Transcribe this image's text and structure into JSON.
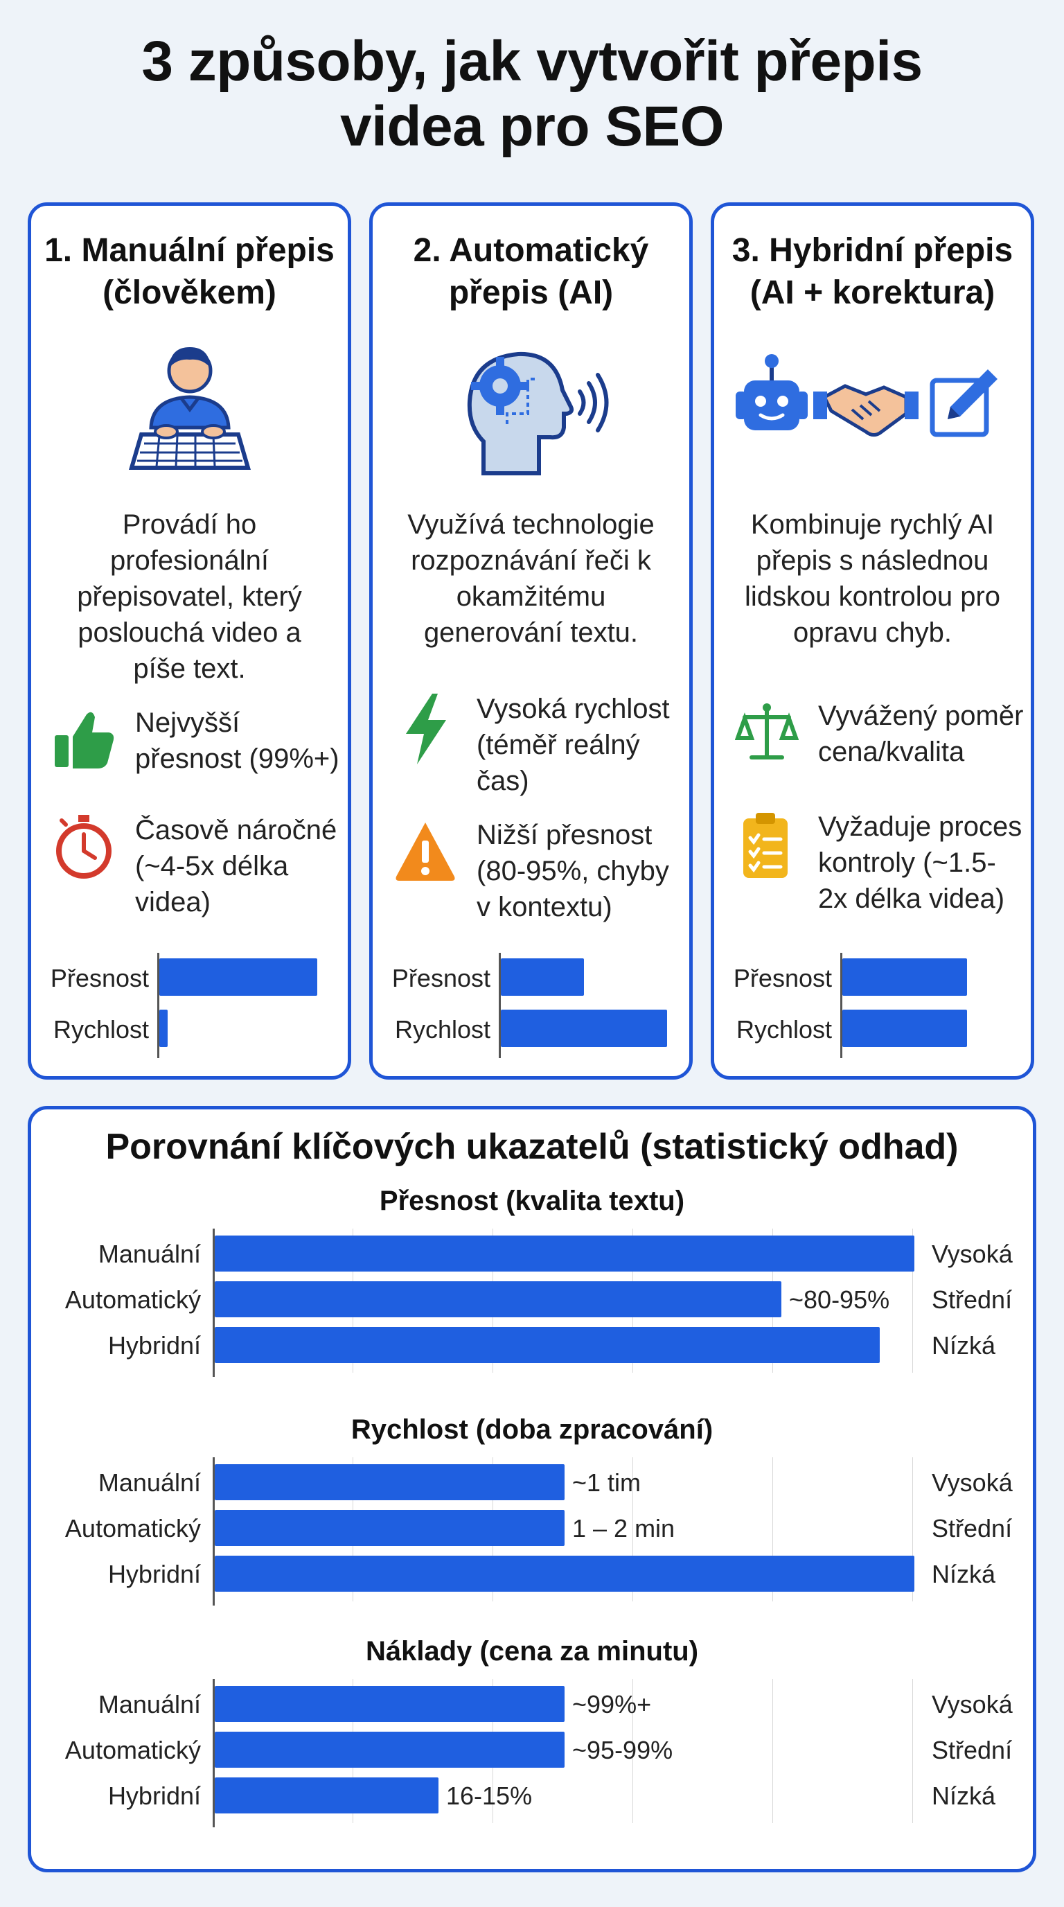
{
  "title": {
    "line1": "3 způsoby, jak vytvořit přepis",
    "line2": "videa pro SEO"
  },
  "cards": [
    {
      "title_line1": "1. Manuální přepis",
      "title_line2": "(člověkem)",
      "icon": "person-typing-icon",
      "description": [
        "Provádí ho profesionální",
        "přepisovatel, který",
        "poslouchá video a",
        "píše text."
      ],
      "features": [
        {
          "icon": "thumbs-up-icon",
          "color": "#2e9d48",
          "lines": [
            "Nejvyšší",
            "přesnost (99%+)"
          ]
        },
        {
          "icon": "stopwatch-icon",
          "color": "#d33a2c",
          "lines": [
            "Časově náročné",
            "(~4-5x délka",
            "videa)"
          ]
        }
      ],
      "chart_data": {
        "type": "bar",
        "categories": [
          "Přesnost",
          "Rychlost"
        ],
        "values": [
          0.95,
          0.05
        ]
      }
    },
    {
      "title_line1": "2. Automatický",
      "title_line2": "přepis (AI)",
      "icon": "ai-head-icon",
      "description": [
        "Využívá technologie",
        "rozpoznávání řeči k",
        "okamžitému",
        "generování textu."
      ],
      "features": [
        {
          "icon": "lightning-icon",
          "color": "#2e9d48",
          "lines": [
            "Vysoká rychlost",
            "(téměř reálný",
            "čas)"
          ]
        },
        {
          "icon": "warning-icon",
          "color": "#f28a1c",
          "lines": [
            "Nižší přesnost",
            "(80-95%, chyby",
            "v kontextu)"
          ]
        }
      ],
      "chart_data": {
        "type": "bar",
        "categories": [
          "Přesnost",
          "Rychlost"
        ],
        "values": [
          0.5,
          1.0
        ]
      }
    },
    {
      "title_line1": "3. Hybridní přepis",
      "title_line2": "(AI + korektura)",
      "icon": "robot-handshake-edit-icon",
      "description": [
        "Kombinuje rychlý AI",
        "přepis s následnou",
        "lidskou kontrolou pro",
        "opravu chyb."
      ],
      "features": [
        {
          "icon": "scales-icon",
          "color": "#2e9d48",
          "lines": [
            "Vyvážený poměr",
            "cena/kvalita"
          ]
        },
        {
          "icon": "clipboard-icon",
          "color": "#f2b51c",
          "lines": [
            "Vyžaduje proces",
            "kontroly (~1.5-",
            "2x délka videa)"
          ]
        }
      ],
      "chart_data": {
        "type": "bar",
        "categories": [
          "Přesnost",
          "Rychlost"
        ],
        "values": [
          0.75,
          0.75
        ]
      }
    }
  ],
  "comparison": {
    "title": "Porovnání klíčových ukazatelů (statistický odhad)",
    "chart_data": [
      {
        "type": "bar",
        "title": "Přesnost (kvalita textu)",
        "categories": [
          "Manuální",
          "Automatický",
          "Hybridní"
        ],
        "values": [
          1.0,
          0.81,
          0.95
        ],
        "value_labels": [
          "",
          "~80-95%",
          ""
        ],
        "right_labels": [
          "Vysoká",
          "Střední",
          "Nízká"
        ]
      },
      {
        "type": "bar",
        "title": "Rychlost (doba zpracování)",
        "categories": [
          "Manuální",
          "Automatický",
          "Hybridní"
        ],
        "values": [
          0.5,
          0.5,
          1.0
        ],
        "value_labels": [
          "~1 tim",
          "1 – 2 min",
          ""
        ],
        "right_labels": [
          "Vysoká",
          "Střední",
          "Nízká"
        ]
      },
      {
        "type": "bar",
        "title": "Náklady (cena za minutu)",
        "categories": [
          "Manuální",
          "Automatický",
          "Hybridní"
        ],
        "values": [
          0.5,
          0.5,
          0.32
        ],
        "value_labels": [
          "~99%+",
          "~95-99%",
          "16-15%"
        ],
        "right_labels": [
          "Vysoká",
          "Střední",
          "Nízká"
        ]
      }
    ]
  }
}
